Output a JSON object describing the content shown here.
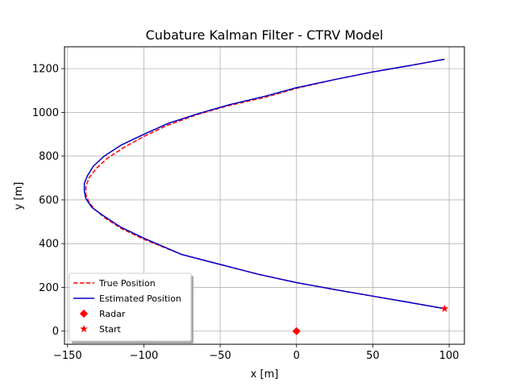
{
  "chart_data": {
    "type": "line",
    "title": "Cubature Kalman Filter - CTRV Model",
    "xlabel": "x [m]",
    "ylabel": "y [m]",
    "xlim": [
      -152,
      110
    ],
    "ylim": [
      -60,
      1300
    ],
    "xticks": [
      -150,
      -100,
      -50,
      0,
      50,
      100
    ],
    "yticks": [
      0,
      200,
      400,
      600,
      800,
      1000,
      1200
    ],
    "xtick_labels": [
      "−150",
      "−100",
      "−50",
      "0",
      "50",
      "100"
    ],
    "ytick_labels": [
      "0",
      "200",
      "400",
      "600",
      "800",
      "1000",
      "1200"
    ],
    "grid": true,
    "legend_position": "lower-left",
    "series": [
      {
        "name": "True Position",
        "color": "#ff0000",
        "style": "dashed",
        "x": [
          97,
          75,
          50,
          25,
          0,
          -25,
          -50,
          -75,
          -100,
          -115,
          -125,
          -132,
          -136,
          -138,
          -138,
          -136,
          -131,
          -124,
          -113,
          -100,
          -85,
          -65,
          -45,
          -20,
          0,
          25,
          50,
          75,
          97
        ],
        "y": [
          103,
          130,
          160,
          190,
          222,
          260,
          305,
          350,
          420,
          470,
          515,
          555,
          590,
          625,
          660,
          700,
          745,
          790,
          840,
          890,
          940,
          990,
          1030,
          1070,
          1110,
          1150,
          1185,
          1215,
          1243
        ]
      },
      {
        "name": "Estimated Position",
        "color": "#0000cc",
        "style": "solid",
        "x": [
          97,
          75,
          50,
          25,
          0,
          -25,
          -50,
          -75,
          -100,
          -115,
          -126,
          -134,
          -138,
          -139,
          -139,
          -137,
          -133,
          -126,
          -115,
          -100,
          -84,
          -64,
          -44,
          -20,
          0,
          25,
          50,
          75,
          97
        ],
        "y": [
          103,
          130,
          160,
          190,
          222,
          260,
          305,
          350,
          425,
          475,
          525,
          565,
          605,
          640,
          675,
          710,
          755,
          800,
          850,
          900,
          950,
          995,
          1035,
          1075,
          1113,
          1150,
          1185,
          1215,
          1243
        ]
      }
    ],
    "markers": [
      {
        "name": "Radar",
        "x": 0,
        "y": 0,
        "color": "#ff0000",
        "shape": "diamond"
      },
      {
        "name": "Start",
        "x": 97,
        "y": 103,
        "color": "#ff0000",
        "shape": "star"
      }
    ]
  }
}
